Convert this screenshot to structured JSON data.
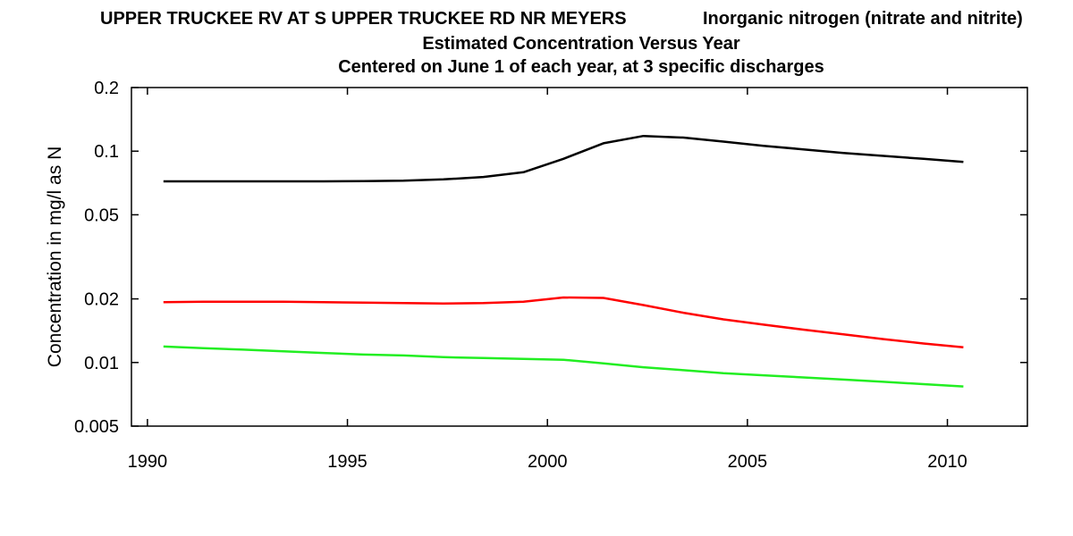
{
  "chart_data": {
    "type": "line",
    "title": "UPPER TRUCKEE RV AT S UPPER TRUCKEE RD NR MEYERS",
    "parameter": "Inorganic nitrogen (nitrate and nitrite)",
    "subtitle": "Estimated Concentration Versus Year",
    "subtitle2": "Centered on June 1 of each year, at 3 specific discharges",
    "xlabel": "",
    "ylabel": "Concentration in mg/l as N",
    "xlim": [
      1989.6,
      2012
    ],
    "ylim": [
      0.005,
      0.2
    ],
    "yscale": "log",
    "x_ticks": [
      1990,
      1995,
      2000,
      2005,
      2010
    ],
    "y_ticks": [
      0.005,
      0.01,
      0.02,
      0.05,
      0.1,
      0.2
    ],
    "y_tick_labels": [
      "0.005",
      "0.01",
      "0.02",
      "0.05",
      "0.1",
      "0.2"
    ],
    "grid": false,
    "series": [
      {
        "color": "#000000",
        "x": [
          1990.4,
          1991.4,
          1992.4,
          1993.4,
          1994.4,
          1995.4,
          1996.4,
          1997.4,
          1998.4,
          1999.4,
          2000.4,
          2001.4,
          2002.4,
          2003.4,
          2004.4,
          2005.4,
          2006.4,
          2007.4,
          2008.4,
          2009.4,
          2010.4
        ],
        "values": [
          0.072,
          0.072,
          0.072,
          0.072,
          0.072,
          0.0721,
          0.0725,
          0.0735,
          0.0755,
          0.0795,
          0.092,
          0.109,
          0.118,
          0.116,
          0.111,
          0.106,
          0.102,
          0.098,
          0.095,
          0.092,
          0.089
        ]
      },
      {
        "color": "#ff0000",
        "x": [
          1990.4,
          1991.4,
          1992.4,
          1993.4,
          1994.4,
          1995.4,
          1996.4,
          1997.4,
          1998.4,
          1999.4,
          2000.4,
          2001.4,
          2002.4,
          2003.4,
          2004.4,
          2005.4,
          2006.4,
          2007.4,
          2008.4,
          2009.4,
          2010.4
        ],
        "values": [
          0.0193,
          0.0194,
          0.0194,
          0.0194,
          0.0193,
          0.0192,
          0.0191,
          0.019,
          0.0191,
          0.0194,
          0.0203,
          0.0202,
          0.0187,
          0.0172,
          0.016,
          0.0151,
          0.0143,
          0.0136,
          0.0129,
          0.0123,
          0.0118
        ]
      },
      {
        "color": "#22ee22",
        "x": [
          1990.4,
          1991.4,
          1992.4,
          1993.4,
          1994.4,
          1995.4,
          1996.4,
          1997.4,
          1998.4,
          1999.4,
          2000.4,
          2001.4,
          2002.4,
          2003.4,
          2004.4,
          2005.4,
          2006.4,
          2007.4,
          2008.4,
          2009.4,
          2010.4
        ],
        "values": [
          0.0119,
          0.0117,
          0.0115,
          0.0113,
          0.0111,
          0.0109,
          0.0108,
          0.0106,
          0.0105,
          0.0104,
          0.0103,
          0.0099,
          0.0095,
          0.0092,
          0.0089,
          0.0087,
          0.0085,
          0.0083,
          0.0081,
          0.0079,
          0.0077
        ]
      }
    ]
  }
}
